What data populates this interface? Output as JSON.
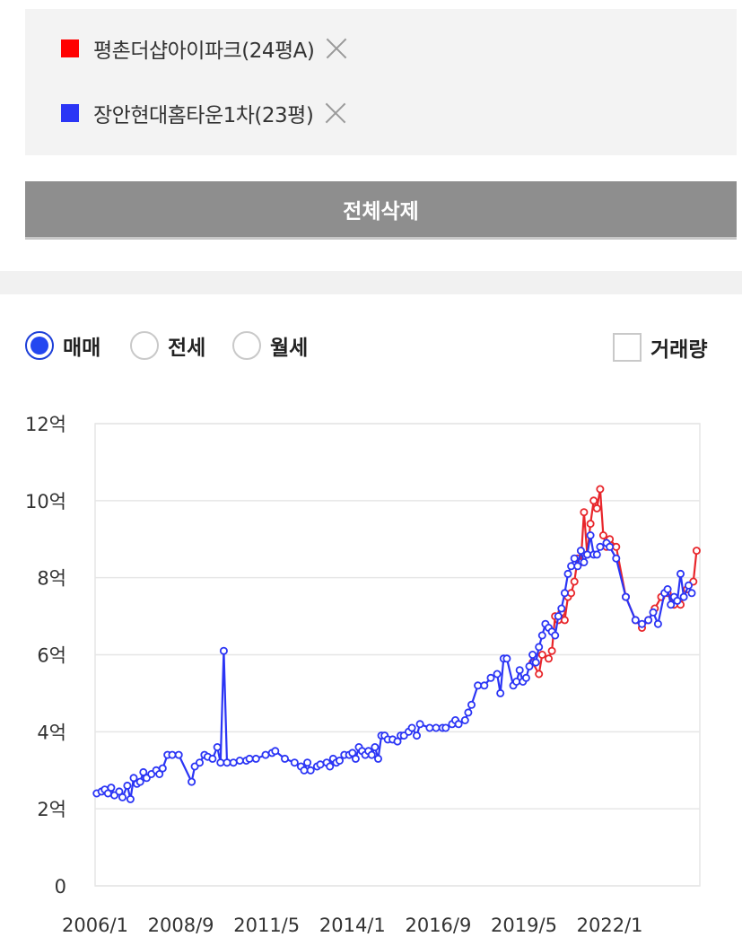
{
  "compare": {
    "items": [
      {
        "label": "평촌더샵아이파크(24평A)",
        "color": "#ff0000"
      },
      {
        "label": "장안현대홈타운1차(23평)",
        "color": "#2b35f5"
      }
    ],
    "remove_icon": "close-icon"
  },
  "delete_all_label": "전체삭제",
  "options": {
    "radios": [
      {
        "label": "매매",
        "checked": true
      },
      {
        "label": "전세",
        "checked": false
      },
      {
        "label": "월세",
        "checked": false
      }
    ],
    "checkbox": {
      "label": "거래량",
      "checked": false
    }
  },
  "chart_data": {
    "type": "line",
    "x_tick_labels": [
      "2006/1",
      "2008/9",
      "2011/5",
      "2014/1",
      "2016/9",
      "2019/5",
      "2022/1"
    ],
    "x_tick_years": [
      2006.0,
      2008.667,
      2011.333,
      2014.0,
      2016.667,
      2019.333,
      2022.0
    ],
    "xlim": [
      2006.0,
      2024.8
    ],
    "ylim": [
      0,
      12
    ],
    "y_ticks": [
      0,
      2,
      4,
      6,
      8,
      10,
      12
    ],
    "y_tick_labels": [
      "0",
      "2억",
      "4억",
      "6억",
      "8억",
      "10억",
      "12억"
    ],
    "grid": true,
    "series": [
      {
        "name": "평촌더샵아이파크(24평A)",
        "color": "#e8262b",
        "points": [
          [
            2019.6,
            5.8
          ],
          [
            2019.8,
            5.5
          ],
          [
            2019.9,
            6.0
          ],
          [
            2020.1,
            5.9
          ],
          [
            2020.2,
            6.1
          ],
          [
            2020.3,
            7.0
          ],
          [
            2020.4,
            6.9
          ],
          [
            2020.5,
            7.1
          ],
          [
            2020.6,
            6.9
          ],
          [
            2020.7,
            7.5
          ],
          [
            2020.8,
            7.6
          ],
          [
            2020.9,
            7.9
          ],
          [
            2021.0,
            8.5
          ],
          [
            2021.1,
            8.4
          ],
          [
            2021.2,
            9.7
          ],
          [
            2021.3,
            8.6
          ],
          [
            2021.4,
            9.4
          ],
          [
            2021.5,
            10.0
          ],
          [
            2021.6,
            9.8
          ],
          [
            2021.7,
            10.3
          ],
          [
            2021.8,
            9.1
          ],
          [
            2021.9,
            8.8
          ],
          [
            2022.0,
            9.0
          ],
          [
            2022.2,
            8.8
          ],
          [
            2022.5,
            7.5
          ],
          [
            2022.8,
            6.9
          ],
          [
            2023.0,
            6.7
          ],
          [
            2023.2,
            6.9
          ],
          [
            2023.4,
            7.2
          ],
          [
            2023.6,
            7.5
          ],
          [
            2023.8,
            7.6
          ],
          [
            2024.0,
            7.3
          ],
          [
            2024.2,
            7.3
          ],
          [
            2024.4,
            7.7
          ],
          [
            2024.6,
            7.9
          ],
          [
            2024.7,
            8.7
          ]
        ]
      },
      {
        "name": "장안현대홈타운1차(23평)",
        "color": "#2b35f5",
        "points": [
          [
            2006.05,
            2.4
          ],
          [
            2006.2,
            2.45
          ],
          [
            2006.3,
            2.5
          ],
          [
            2006.4,
            2.4
          ],
          [
            2006.5,
            2.55
          ],
          [
            2006.6,
            2.35
          ],
          [
            2006.75,
            2.45
          ],
          [
            2006.85,
            2.3
          ],
          [
            2007.0,
            2.6
          ],
          [
            2007.1,
            2.25
          ],
          [
            2007.2,
            2.8
          ],
          [
            2007.3,
            2.65
          ],
          [
            2007.4,
            2.7
          ],
          [
            2007.5,
            2.95
          ],
          [
            2007.6,
            2.8
          ],
          [
            2007.75,
            2.9
          ],
          [
            2007.9,
            3.0
          ],
          [
            2008.0,
            2.9
          ],
          [
            2008.1,
            3.05
          ],
          [
            2008.25,
            3.4
          ],
          [
            2008.4,
            3.4
          ],
          [
            2008.6,
            3.4
          ],
          [
            2009.0,
            2.7
          ],
          [
            2009.1,
            3.1
          ],
          [
            2009.25,
            3.2
          ],
          [
            2009.4,
            3.4
          ],
          [
            2009.5,
            3.35
          ],
          [
            2009.65,
            3.3
          ],
          [
            2009.8,
            3.6
          ],
          [
            2009.9,
            3.2
          ],
          [
            2010.0,
            6.1
          ],
          [
            2010.1,
            3.2
          ],
          [
            2010.3,
            3.2
          ],
          [
            2010.5,
            3.25
          ],
          [
            2010.7,
            3.25
          ],
          [
            2010.8,
            3.3
          ],
          [
            2011.0,
            3.3
          ],
          [
            2011.3,
            3.4
          ],
          [
            2011.5,
            3.45
          ],
          [
            2011.6,
            3.5
          ],
          [
            2011.9,
            3.3
          ],
          [
            2012.2,
            3.2
          ],
          [
            2012.4,
            3.1
          ],
          [
            2012.5,
            3.0
          ],
          [
            2012.6,
            3.2
          ],
          [
            2012.7,
            3.0
          ],
          [
            2012.9,
            3.1
          ],
          [
            2013.0,
            3.15
          ],
          [
            2013.2,
            3.2
          ],
          [
            2013.3,
            3.1
          ],
          [
            2013.4,
            3.3
          ],
          [
            2013.5,
            3.2
          ],
          [
            2013.6,
            3.25
          ],
          [
            2013.75,
            3.4
          ],
          [
            2013.9,
            3.4
          ],
          [
            2014.0,
            3.45
          ],
          [
            2014.1,
            3.3
          ],
          [
            2014.2,
            3.6
          ],
          [
            2014.3,
            3.5
          ],
          [
            2014.4,
            3.4
          ],
          [
            2014.5,
            3.5
          ],
          [
            2014.6,
            3.4
          ],
          [
            2014.7,
            3.6
          ],
          [
            2014.8,
            3.3
          ],
          [
            2014.9,
            3.9
          ],
          [
            2015.0,
            3.9
          ],
          [
            2015.1,
            3.8
          ],
          [
            2015.25,
            3.8
          ],
          [
            2015.4,
            3.75
          ],
          [
            2015.5,
            3.9
          ],
          [
            2015.6,
            3.9
          ],
          [
            2015.75,
            4.0
          ],
          [
            2015.85,
            4.1
          ],
          [
            2016.0,
            3.9
          ],
          [
            2016.1,
            4.2
          ],
          [
            2016.4,
            4.1
          ],
          [
            2016.6,
            4.1
          ],
          [
            2016.8,
            4.1
          ],
          [
            2016.9,
            4.1
          ],
          [
            2017.1,
            4.2
          ],
          [
            2017.2,
            4.3
          ],
          [
            2017.3,
            4.2
          ],
          [
            2017.5,
            4.3
          ],
          [
            2017.6,
            4.5
          ],
          [
            2017.7,
            4.7
          ],
          [
            2017.9,
            5.2
          ],
          [
            2018.1,
            5.2
          ],
          [
            2018.3,
            5.4
          ],
          [
            2018.5,
            5.5
          ],
          [
            2018.6,
            5.0
          ],
          [
            2018.7,
            5.9
          ],
          [
            2018.8,
            5.9
          ],
          [
            2019.0,
            5.2
          ],
          [
            2019.1,
            5.3
          ],
          [
            2019.2,
            5.6
          ],
          [
            2019.3,
            5.3
          ],
          [
            2019.4,
            5.4
          ],
          [
            2019.5,
            5.7
          ],
          [
            2019.6,
            6.0
          ],
          [
            2019.7,
            5.8
          ],
          [
            2019.8,
            6.2
          ],
          [
            2019.9,
            6.5
          ],
          [
            2020.0,
            6.8
          ],
          [
            2020.1,
            6.7
          ],
          [
            2020.2,
            6.6
          ],
          [
            2020.3,
            6.5
          ],
          [
            2020.4,
            7.0
          ],
          [
            2020.5,
            7.2
          ],
          [
            2020.6,
            7.6
          ],
          [
            2020.7,
            8.1
          ],
          [
            2020.8,
            8.3
          ],
          [
            2020.9,
            8.5
          ],
          [
            2021.0,
            8.3
          ],
          [
            2021.1,
            8.7
          ],
          [
            2021.2,
            8.4
          ],
          [
            2021.3,
            8.6
          ],
          [
            2021.4,
            9.1
          ],
          [
            2021.5,
            8.6
          ],
          [
            2021.6,
            8.6
          ],
          [
            2021.7,
            8.8
          ],
          [
            2021.9,
            8.9
          ],
          [
            2022.0,
            8.8
          ],
          [
            2022.2,
            8.5
          ],
          [
            2022.5,
            7.5
          ],
          [
            2022.8,
            6.9
          ],
          [
            2023.0,
            6.8
          ],
          [
            2023.2,
            6.9
          ],
          [
            2023.35,
            7.1
          ],
          [
            2023.5,
            6.8
          ],
          [
            2023.7,
            7.6
          ],
          [
            2023.8,
            7.7
          ],
          [
            2023.9,
            7.3
          ],
          [
            2024.0,
            7.5
          ],
          [
            2024.1,
            7.4
          ],
          [
            2024.2,
            8.1
          ],
          [
            2024.3,
            7.5
          ],
          [
            2024.45,
            7.8
          ],
          [
            2024.55,
            7.6
          ]
        ]
      }
    ]
  }
}
